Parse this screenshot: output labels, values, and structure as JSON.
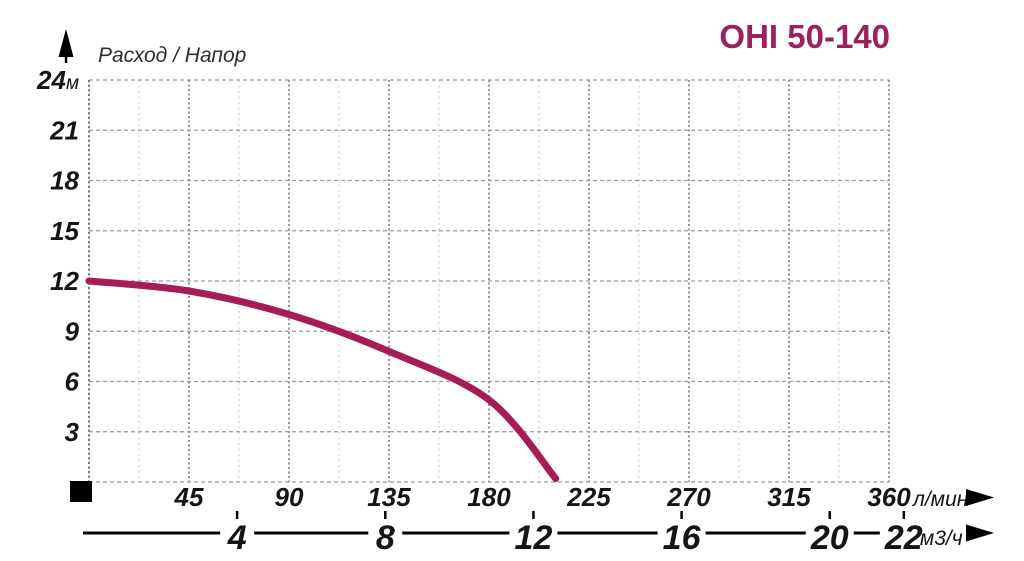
{
  "header": {
    "title": "OHI 50-140",
    "axis_caption": "Расход / Напор"
  },
  "colors": {
    "accent_title": "#9A205E",
    "curve": "#A71B57",
    "text": "#151515",
    "grid_horizontal": "#9a9a9a",
    "grid_vertical_major": "#8a8a8a",
    "grid_vertical_minor": "#d4d4d4",
    "axis_y_line": "#777777",
    "axis_black": "#000000"
  },
  "icons": {
    "up_arrow": "axis-arrow-up",
    "right_arrow_flow": "axis-arrow-right",
    "right_arrow_volume": "axis-arrow-right",
    "origin_marker": "origin-square-marker"
  },
  "chart_data": {
    "type": "line",
    "title": "OHI 50-140",
    "ylabel": "Расход / Напор",
    "y_unit": "м",
    "ylim": [
      0,
      24
    ],
    "y_ticks": [
      24,
      21,
      18,
      15,
      12,
      9,
      6,
      3
    ],
    "grid": true,
    "legend_position": "none",
    "x_primary": {
      "unit": "л/мин",
      "lim": [
        0,
        360
      ],
      "ticks": [
        45,
        90,
        135,
        180,
        225,
        270,
        315,
        360
      ],
      "minor_step": 22.5
    },
    "x_secondary": {
      "unit": "м3/ч",
      "ticks": [
        4,
        8,
        12,
        16,
        20,
        22
      ],
      "lmin_per_unit": 16.6667
    },
    "series": [
      {
        "name": "OHI 50-140 pump curve",
        "x_unit": "л/мин",
        "points": [
          [
            0,
            12
          ],
          [
            45,
            11.4
          ],
          [
            90,
            10.0
          ],
          [
            135,
            7.8
          ],
          [
            180,
            4.9
          ],
          [
            210,
            0.2
          ]
        ]
      }
    ]
  }
}
